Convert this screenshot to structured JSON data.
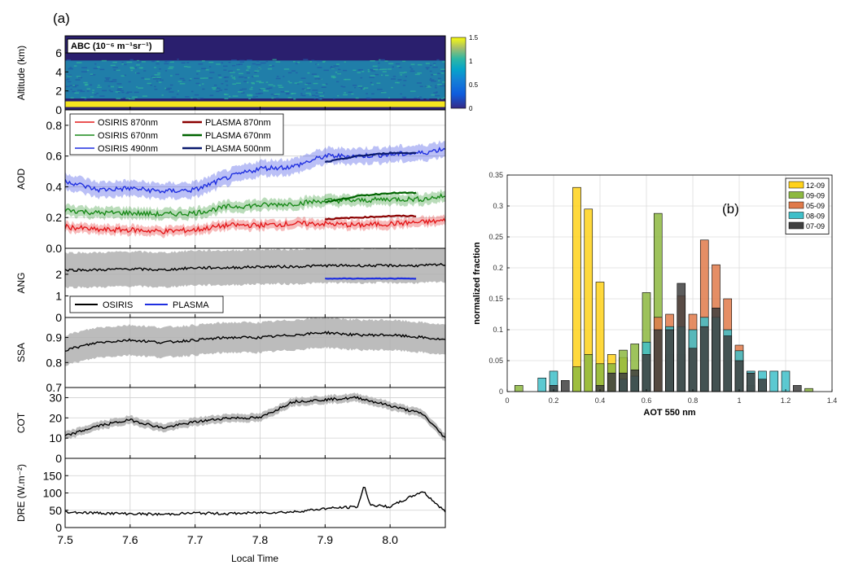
{
  "panel_labels": {
    "a": "(a)",
    "b": "(b)"
  },
  "left_figure": {
    "x_axis": {
      "label": "Local Time",
      "ticks": [
        7.5,
        7.6,
        7.7,
        7.8,
        7.9,
        8.0
      ],
      "tick_labels": [
        "7.5",
        "7.6",
        "7.7",
        "7.8",
        "7.9",
        "8.0"
      ],
      "range": [
        7.5,
        8.085
      ]
    },
    "panels": {
      "abc": {
        "type": "heatmap",
        "title_text": "ABC (10⁻⁶ m⁻¹sr⁻¹)",
        "ylabel": "Altitude (km)",
        "yrange": [
          0,
          7.8
        ],
        "yticks": [
          0,
          2,
          4,
          6
        ],
        "ytick_labels": [
          "0",
          "2",
          "4",
          "6"
        ],
        "colorbar": {
          "range": [
            0,
            1.5
          ],
          "ticks": [
            0,
            0.5,
            1,
            1.5
          ],
          "tick_labels": [
            "0",
            "0.5",
            "1",
            "1.5"
          ]
        },
        "layers": [
          {
            "name": "surface-layer",
            "alt_km": [
              0.3,
              0.9
            ],
            "value": 1.4
          },
          {
            "name": "aerosol-layer",
            "alt_km": [
              1.2,
              5.2
            ],
            "value": 0.45
          }
        ]
      },
      "aod": {
        "ylabel": "AOD",
        "yrange": [
          0,
          0.9
        ],
        "yticks": [
          0,
          0.2,
          0.4,
          0.6,
          0.8
        ],
        "ytick_labels": [
          "0.0",
          "0.2",
          "0.4",
          "0.6",
          "0.8"
        ],
        "legend": [
          "OSIRIS 870nm",
          "OSIRIS 670nm",
          "OSIRIS 490nm",
          "PLASMA 870nm",
          "PLASMA 670nm",
          "PLASMA 500nm"
        ],
        "series": [
          {
            "name": "OSIRIS 870nm",
            "color": "#e41a1c",
            "band": 0.03,
            "x": [
              7.5,
              7.55,
              7.6,
              7.65,
              7.7,
              7.75,
              7.8,
              7.85,
              7.9,
              7.95,
              8.0,
              8.05,
              8.085
            ],
            "y": [
              0.14,
              0.12,
              0.12,
              0.11,
              0.12,
              0.15,
              0.15,
              0.16,
              0.16,
              0.15,
              0.16,
              0.17,
              0.18
            ]
          },
          {
            "name": "OSIRIS 670nm",
            "color": "#1a8a1a",
            "band": 0.035,
            "x": [
              7.5,
              7.55,
              7.6,
              7.65,
              7.7,
              7.75,
              7.8,
              7.85,
              7.9,
              7.95,
              8.0,
              8.05,
              8.085
            ],
            "y": [
              0.25,
              0.23,
              0.23,
              0.22,
              0.23,
              0.27,
              0.28,
              0.29,
              0.31,
              0.31,
              0.32,
              0.32,
              0.34
            ]
          },
          {
            "name": "OSIRIS 490nm",
            "color": "#1f2fe0",
            "band": 0.05,
            "x": [
              7.5,
              7.55,
              7.6,
              7.65,
              7.7,
              7.75,
              7.8,
              7.85,
              7.9,
              7.95,
              8.0,
              8.05,
              8.085
            ],
            "y": [
              0.44,
              0.38,
              0.39,
              0.37,
              0.38,
              0.46,
              0.52,
              0.53,
              0.6,
              0.6,
              0.61,
              0.62,
              0.65
            ]
          },
          {
            "name": "PLASMA 870nm",
            "color": "#8b0000",
            "band": 0,
            "x": [
              7.9,
              7.95,
              8.0,
              8.04
            ],
            "y": [
              0.19,
              0.2,
              0.21,
              0.21
            ]
          },
          {
            "name": "PLASMA 670nm",
            "color": "#006400",
            "band": 0,
            "x": [
              7.9,
              7.95,
              8.0,
              8.04
            ],
            "y": [
              0.3,
              0.34,
              0.36,
              0.36
            ]
          },
          {
            "name": "PLASMA 500nm",
            "color": "#0a1a6e",
            "band": 0,
            "x": [
              7.9,
              7.95,
              8.0,
              8.04
            ],
            "y": [
              0.56,
              0.6,
              0.62,
              0.62
            ]
          }
        ]
      },
      "ang": {
        "ylabel": "ANG",
        "yrange": [
          0,
          3.2
        ],
        "yticks": [
          0,
          1,
          2
        ],
        "ytick_labels": [
          "0",
          "1",
          "2"
        ],
        "legend": [
          "OSIRIS",
          "PLASMA"
        ],
        "series": [
          {
            "name": "OSIRIS",
            "color": "#000000",
            "band": 0.8,
            "x": [
              7.5,
              7.55,
              7.6,
              7.65,
              7.7,
              7.75,
              7.8,
              7.85,
              7.9,
              7.95,
              8.0,
              8.05,
              8.085
            ],
            "y": [
              2.2,
              2.2,
              2.25,
              2.2,
              2.3,
              2.3,
              2.35,
              2.35,
              2.4,
              2.4,
              2.4,
              2.4,
              2.45
            ]
          },
          {
            "name": "PLASMA",
            "color": "#1f2fe0",
            "band": 0,
            "x": [
              7.9,
              7.95,
              8.0,
              8.04
            ],
            "y": [
              1.8,
              1.8,
              1.8,
              1.8
            ]
          }
        ]
      },
      "ssa": {
        "ylabel": "SSA",
        "yrange": [
          0.7,
          0.98
        ],
        "yticks": [
          0.7,
          0.8,
          0.9
        ],
        "ytick_labels": [
          "0.7",
          "0.8",
          "0.9"
        ],
        "series": [
          {
            "name": "OSIRIS",
            "color": "#000000",
            "band": 0.06,
            "x": [
              7.5,
              7.55,
              7.6,
              7.65,
              7.7,
              7.75,
              7.8,
              7.85,
              7.9,
              7.95,
              8.0,
              8.05,
              8.085
            ],
            "y": [
              0.85,
              0.88,
              0.89,
              0.88,
              0.89,
              0.9,
              0.9,
              0.91,
              0.92,
              0.91,
              0.91,
              0.9,
              0.89
            ]
          }
        ]
      },
      "cot": {
        "ylabel": "COT",
        "yrange": [
          0,
          35
        ],
        "yticks": [
          0,
          10,
          20,
          30
        ],
        "ytick_labels": [
          "0",
          "10",
          "20",
          "30"
        ],
        "series": [
          {
            "name": "OSIRIS",
            "color": "#000000",
            "band": 2,
            "x": [
              7.5,
              7.55,
              7.6,
              7.65,
              7.7,
              7.75,
              7.8,
              7.85,
              7.9,
              7.95,
              8.0,
              8.05,
              8.085
            ],
            "y": [
              11,
              16,
              19,
              15,
              18,
              20,
              20,
              28,
              29,
              30,
              26,
              22,
              10
            ]
          }
        ]
      },
      "dre": {
        "ylabel": "DRE (W.m⁻²)",
        "yrange": [
          0,
          200
        ],
        "yticks": [
          0,
          50,
          100,
          150
        ],
        "ytick_labels": [
          "0",
          "50",
          "100",
          "150"
        ],
        "series": [
          {
            "name": "OSIRIS",
            "color": "#000000",
            "band": 0,
            "x": [
              7.5,
              7.55,
              7.6,
              7.65,
              7.7,
              7.75,
              7.8,
              7.85,
              7.9,
              7.95,
              7.96,
              7.97,
              8.0,
              8.05,
              8.085
            ],
            "y": [
              45,
              42,
              40,
              38,
              42,
              40,
              43,
              45,
              55,
              60,
              120,
              65,
              60,
              105,
              45
            ]
          }
        ]
      }
    }
  },
  "chart_data": {
    "type": "bar",
    "stacked": false,
    "xlabel": "AOT 550 nm",
    "ylabel": "normalized fraction",
    "xlim": [
      0,
      1.4
    ],
    "ylim": [
      0,
      0.35
    ],
    "xticks": [
      0,
      0.2,
      0.4,
      0.6,
      0.8,
      1,
      1.2,
      1.4
    ],
    "xtick_labels": [
      "0",
      "0.2",
      "0.4",
      "0.6",
      "0.8",
      "1",
      "1.2",
      "1.4"
    ],
    "yticks": [
      0,
      0.05,
      0.1,
      0.15,
      0.2,
      0.25,
      0.3,
      0.35
    ],
    "ytick_labels": [
      "0",
      "0.05",
      "0.1",
      "0.15",
      "0.2",
      "0.25",
      "0.3",
      "0.35"
    ],
    "grid": true,
    "legend_position": "top-right",
    "bin_width": 0.05,
    "series": [
      {
        "name": "12-09",
        "color": "#ffd21a",
        "bins": [
          {
            "x": 0.3,
            "y": 0.33
          },
          {
            "x": 0.35,
            "y": 0.295
          },
          {
            "x": 0.4,
            "y": 0.177
          },
          {
            "x": 0.45,
            "y": 0.06
          },
          {
            "x": 0.5,
            "y": 0.055
          }
        ]
      },
      {
        "name": "09-09",
        "color": "#8db940",
        "bins": [
          {
            "x": 0.05,
            "y": 0.01
          },
          {
            "x": 0.3,
            "y": 0.04
          },
          {
            "x": 0.35,
            "y": 0.06
          },
          {
            "x": 0.4,
            "y": 0.045
          },
          {
            "x": 0.45,
            "y": 0.045
          },
          {
            "x": 0.5,
            "y": 0.067
          },
          {
            "x": 0.55,
            "y": 0.077
          },
          {
            "x": 0.6,
            "y": 0.16
          },
          {
            "x": 0.65,
            "y": 0.288
          },
          {
            "x": 0.7,
            "y": 0.06
          },
          {
            "x": 0.75,
            "y": 0.06
          },
          {
            "x": 1.3,
            "y": 0.005
          }
        ]
      },
      {
        "name": "05-09",
        "color": "#e07a4a",
        "bins": [
          {
            "x": 0.65,
            "y": 0.12
          },
          {
            "x": 0.7,
            "y": 0.125
          },
          {
            "x": 0.75,
            "y": 0.155
          },
          {
            "x": 0.8,
            "y": 0.125
          },
          {
            "x": 0.85,
            "y": 0.245
          },
          {
            "x": 0.9,
            "y": 0.205
          },
          {
            "x": 0.95,
            "y": 0.15
          },
          {
            "x": 1.0,
            "y": 0.075
          },
          {
            "x": 1.05,
            "y": 0.01
          }
        ]
      },
      {
        "name": "08-09",
        "color": "#3fbfc9",
        "bins": [
          {
            "x": 0.15,
            "y": 0.022
          },
          {
            "x": 0.2,
            "y": 0.033
          },
          {
            "x": 0.5,
            "y": 0.02
          },
          {
            "x": 0.55,
            "y": 0.025
          },
          {
            "x": 0.6,
            "y": 0.08
          },
          {
            "x": 0.7,
            "y": 0.105
          },
          {
            "x": 0.75,
            "y": 0.105
          },
          {
            "x": 0.8,
            "y": 0.1
          },
          {
            "x": 0.85,
            "y": 0.12
          },
          {
            "x": 0.9,
            "y": 0.12
          },
          {
            "x": 0.95,
            "y": 0.1
          },
          {
            "x": 1.0,
            "y": 0.066
          },
          {
            "x": 1.05,
            "y": 0.033
          },
          {
            "x": 1.1,
            "y": 0.033
          },
          {
            "x": 1.15,
            "y": 0.033
          },
          {
            "x": 1.2,
            "y": 0.033
          }
        ]
      },
      {
        "name": "07-09",
        "color": "#404040",
        "bins": [
          {
            "x": 0.2,
            "y": 0.01
          },
          {
            "x": 0.25,
            "y": 0.018
          },
          {
            "x": 0.4,
            "y": 0.01
          },
          {
            "x": 0.45,
            "y": 0.03
          },
          {
            "x": 0.5,
            "y": 0.03
          },
          {
            "x": 0.55,
            "y": 0.035
          },
          {
            "x": 0.6,
            "y": 0.06
          },
          {
            "x": 0.65,
            "y": 0.1
          },
          {
            "x": 0.7,
            "y": 0.1
          },
          {
            "x": 0.75,
            "y": 0.175
          },
          {
            "x": 0.8,
            "y": 0.07
          },
          {
            "x": 0.85,
            "y": 0.105
          },
          {
            "x": 0.9,
            "y": 0.135
          },
          {
            "x": 0.95,
            "y": 0.09
          },
          {
            "x": 1.0,
            "y": 0.05
          },
          {
            "x": 1.05,
            "y": 0.03
          },
          {
            "x": 1.1,
            "y": 0.02
          },
          {
            "x": 1.25,
            "y": 0.01
          }
        ]
      }
    ]
  }
}
